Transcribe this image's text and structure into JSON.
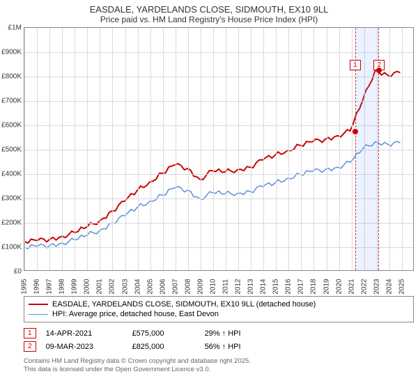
{
  "title": "EASDALE, YARDELANDS CLOSE, SIDMOUTH, EX10 9LL",
  "subtitle": "Price paid vs. HM Land Registry's House Price Index (HPI)",
  "chart": {
    "type": "line",
    "background": "#ffffff",
    "grid_color": "#d9d9d9",
    "border_color": "#888888",
    "ylim": [
      0,
      1000000
    ],
    "ytick_step": 100000,
    "yticklabels": [
      "£0",
      "£100K",
      "£200K",
      "£300K",
      "£400K",
      "£500K",
      "£600K",
      "£700K",
      "£800K",
      "£900K",
      "£1M"
    ],
    "xlim": [
      1995,
      2026
    ],
    "xticks": [
      1995,
      1996,
      1997,
      1998,
      1999,
      2000,
      2001,
      2002,
      2003,
      2004,
      2005,
      2006,
      2007,
      2008,
      2009,
      2010,
      2011,
      2012,
      2013,
      2014,
      2015,
      2016,
      2017,
      2018,
      2019,
      2020,
      2021,
      2022,
      2023,
      2024,
      2025
    ],
    "series": [
      {
        "name": "EASDALE, YARDELANDS CLOSE, SIDMOUTH, EX10 9LL (detached house)",
        "color": "#cc0000",
        "line_width": 2,
        "data": [
          [
            1995,
            118000
          ],
          [
            1996,
            122000
          ],
          [
            1997,
            128000
          ],
          [
            1998,
            140000
          ],
          [
            1999,
            155000
          ],
          [
            2000,
            180000
          ],
          [
            2001,
            205000
          ],
          [
            2002,
            245000
          ],
          [
            2003,
            285000
          ],
          [
            2004,
            330000
          ],
          [
            2005,
            365000
          ],
          [
            2006,
            400000
          ],
          [
            2007,
            435000
          ],
          [
            2008,
            420000
          ],
          [
            2009,
            375000
          ],
          [
            2010,
            410000
          ],
          [
            2011,
            405000
          ],
          [
            2012,
            415000
          ],
          [
            2013,
            425000
          ],
          [
            2014,
            455000
          ],
          [
            2015,
            475000
          ],
          [
            2016,
            495000
          ],
          [
            2017,
            515000
          ],
          [
            2018,
            530000
          ],
          [
            2019,
            540000
          ],
          [
            2020,
            555000
          ],
          [
            2021,
            575000
          ],
          [
            2022,
            700000
          ],
          [
            2023,
            825000
          ],
          [
            2024,
            805000
          ],
          [
            2025,
            815000
          ]
        ]
      },
      {
        "name": "HPI: Average price, detached house, East Devon",
        "color": "#5b8fd6",
        "line_width": 1.5,
        "data": [
          [
            1995,
            95000
          ],
          [
            1996,
            98000
          ],
          [
            1997,
            103000
          ],
          [
            1998,
            112000
          ],
          [
            1999,
            125000
          ],
          [
            2000,
            145000
          ],
          [
            2001,
            165000
          ],
          [
            2002,
            195000
          ],
          [
            2003,
            225000
          ],
          [
            2004,
            260000
          ],
          [
            2005,
            285000
          ],
          [
            2006,
            310000
          ],
          [
            2007,
            340000
          ],
          [
            2008,
            330000
          ],
          [
            2009,
            295000
          ],
          [
            2010,
            320000
          ],
          [
            2011,
            315000
          ],
          [
            2012,
            318000
          ],
          [
            2013,
            325000
          ],
          [
            2014,
            345000
          ],
          [
            2015,
            360000
          ],
          [
            2016,
            380000
          ],
          [
            2017,
            395000
          ],
          [
            2018,
            408000
          ],
          [
            2019,
            415000
          ],
          [
            2020,
            425000
          ],
          [
            2021,
            445000
          ],
          [
            2022,
            500000
          ],
          [
            2023,
            530000
          ],
          [
            2024,
            520000
          ],
          [
            2025,
            525000
          ]
        ]
      }
    ],
    "highlight_band": {
      "start": 2021.3,
      "end": 2023.2
    },
    "markers": [
      {
        "idx": "1",
        "x": 2021.3,
        "y": 575000,
        "label_y": 870000,
        "color": "#cc0000"
      },
      {
        "idx": "2",
        "x": 2023.2,
        "y": 825000,
        "label_y": 870000,
        "color": "#cc0000"
      }
    ]
  },
  "legend": {
    "items": [
      {
        "color": "#cc0000",
        "weight": 2,
        "label": "EASDALE, YARDELANDS CLOSE, SIDMOUTH, EX10 9LL (detached house)"
      },
      {
        "color": "#5b8fd6",
        "weight": 1.5,
        "label": "HPI: Average price, detached house, East Devon"
      }
    ]
  },
  "transactions": [
    {
      "idx": "1",
      "color": "#cc0000",
      "date": "14-APR-2021",
      "price": "£575,000",
      "pct": "29% ↑ HPI"
    },
    {
      "idx": "2",
      "color": "#cc0000",
      "date": "09-MAR-2023",
      "price": "£825,000",
      "pct": "56% ↑ HPI"
    }
  ],
  "footer_line1": "Contains HM Land Registry data © Crown copyright and database right 2025.",
  "footer_line2": "This data is licensed under the Open Government Licence v3.0."
}
